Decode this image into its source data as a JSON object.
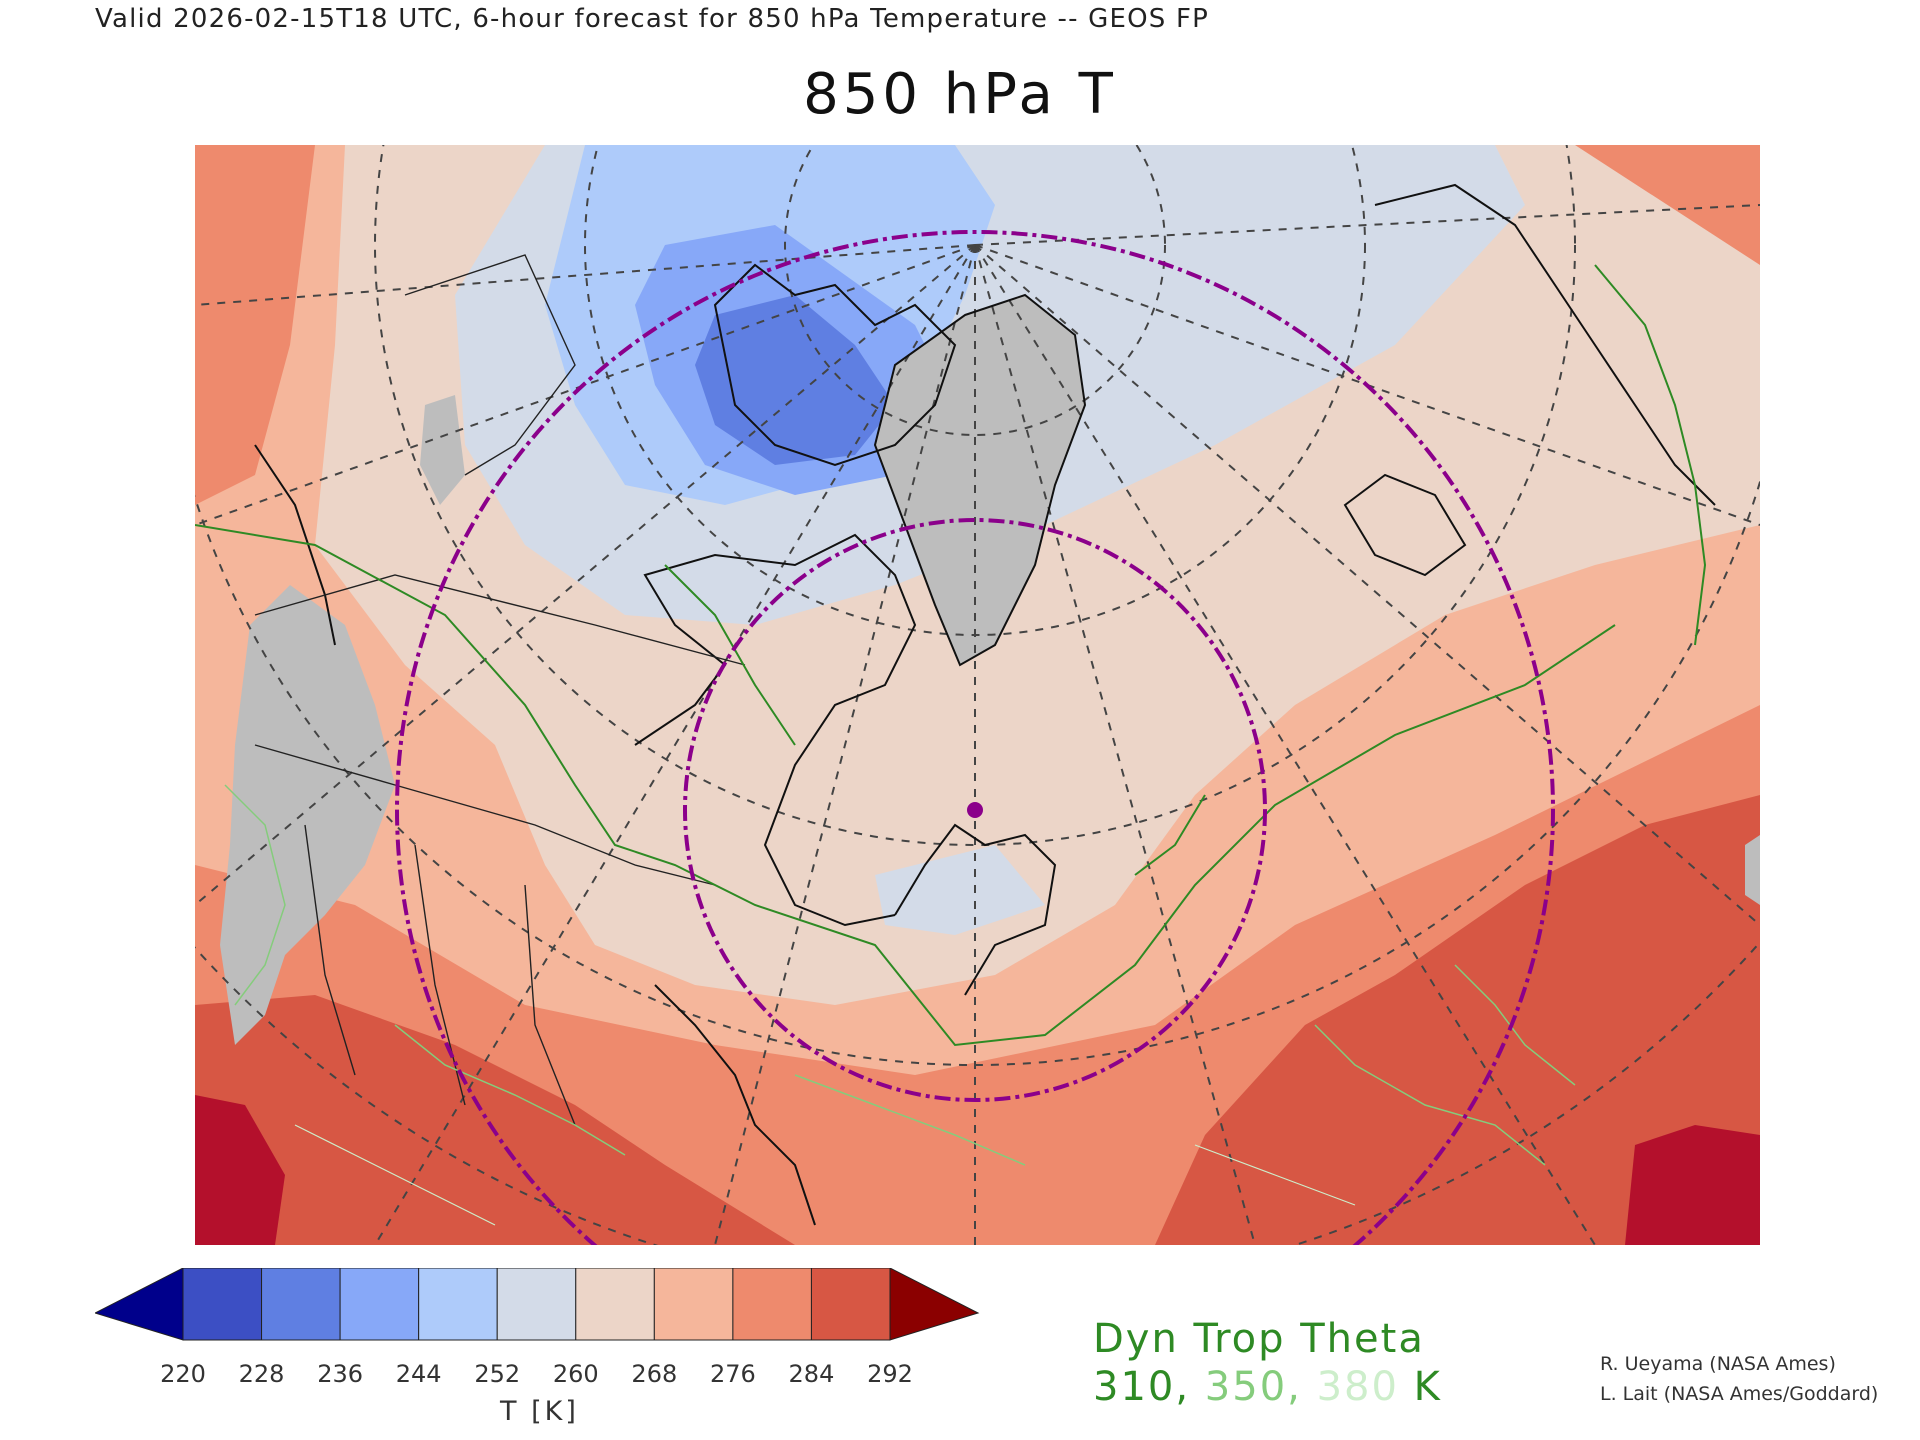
{
  "header": {
    "valid_text": "Valid 2026-02-15T18 UTC, 6-hour forecast for 850 hPa Temperature -- GEOS FP",
    "title": "850 hPa T"
  },
  "map": {
    "region": "North America, Arctic and Northern Europe",
    "projection": "polar stereographic",
    "center_marker_color": "#8b008b",
    "range_ring_color": "#8b008b",
    "gridline_color": "#444444",
    "coastline_color": "#111111",
    "missing_data_color": "#bdbdbd"
  },
  "colorbar": {
    "ticks": [
      "220",
      "228",
      "236",
      "244",
      "252",
      "260",
      "268",
      "276",
      "284",
      "292"
    ],
    "colors": [
      "#3c4fc4",
      "#5f7fe2",
      "#87a8f8",
      "#aecbfa",
      "#d3dbe8",
      "#ecd5c8",
      "#f5b69b",
      "#ee8a6d",
      "#d75744"
    ],
    "below_color": "#00008b",
    "above_color": "#8b0000",
    "label": "T [K]"
  },
  "dyn_trop": {
    "title": "Dyn Trop Theta",
    "values": [
      {
        "text": "310",
        "color": "#2e8a24"
      },
      {
        "text": "350",
        "color": "#85cc7c"
      },
      {
        "text": "380",
        "color": "#cdeecb"
      }
    ],
    "separator": ", ",
    "unit": " K"
  },
  "credits": {
    "line1": "R. Ueyama (NASA Ames)",
    "line2": "L. Lait (NASA Ames/Goddard)"
  }
}
